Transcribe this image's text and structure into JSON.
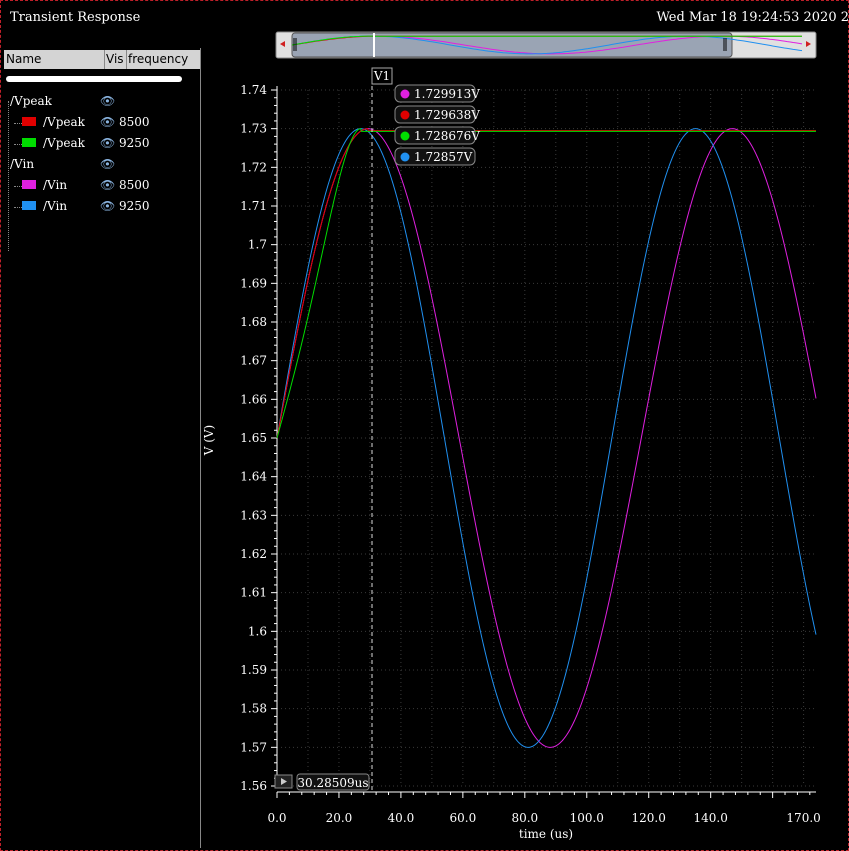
{
  "window": {
    "title": "Transient Response",
    "datetime": "Wed Mar 18 19:24:53 2020  2"
  },
  "legend": {
    "columns": [
      "Name",
      "Vis",
      "frequency"
    ],
    "groups": [
      {
        "name": "/Vpeak",
        "traces": [
          {
            "name": "/Vpeak",
            "freq": "8500",
            "color": "#e00000"
          },
          {
            "name": "/Vpeak",
            "freq": "9250",
            "color": "#00dd00"
          }
        ]
      },
      {
        "name": "/Vin",
        "traces": [
          {
            "name": "/Vin",
            "freq": "8500",
            "color": "#e020e0"
          },
          {
            "name": "/Vin",
            "freq": "9250",
            "color": "#2090f0"
          }
        ]
      }
    ]
  },
  "cursor": {
    "label": "V1",
    "x_value": "30.28509us",
    "readouts": [
      {
        "value": "1.729913V",
        "color": "#e020e0"
      },
      {
        "value": "1.729638V",
        "color": "#e00000"
      },
      {
        "value": "1.728676V",
        "color": "#00dd00"
      },
      {
        "value": "1.72857V",
        "color": "#2090f0"
      }
    ]
  },
  "chart_data": {
    "type": "line",
    "xlabel": "time (us)",
    "ylabel": "V (V)",
    "xlim": [
      0,
      174
    ],
    "ylim": [
      1.56,
      1.74
    ],
    "x_tick_labels": [
      "0.0",
      "20.0",
      "40.0",
      "60.0",
      "80.0",
      "100.0",
      "120.0",
      "140.0",
      "170.0"
    ],
    "x_tick_values": [
      0,
      20,
      40,
      60,
      80,
      100,
      120,
      140,
      170
    ],
    "y_tick_labels": [
      "1.74",
      "1.73",
      "1.72",
      "1.71",
      "1.7",
      "1.69",
      "1.68",
      "1.67",
      "1.66",
      "1.65",
      "1.64",
      "1.63",
      "1.62",
      "1.61",
      "1.6",
      "1.59",
      "1.58",
      "1.57",
      "1.56"
    ],
    "y_tick_values": [
      1.74,
      1.73,
      1.72,
      1.71,
      1.7,
      1.69,
      1.68,
      1.67,
      1.66,
      1.65,
      1.64,
      1.63,
      1.62,
      1.61,
      1.6,
      1.59,
      1.58,
      1.57,
      1.56
    ],
    "grid": true,
    "series": [
      {
        "color": "#e020e0",
        "kind": "sine",
        "offset": 1.65,
        "amplitude": 0.08,
        "period_us": 117.6,
        "x_end": 174
      },
      {
        "color": "#2090f0",
        "kind": "sine",
        "offset": 1.65,
        "amplitude": 0.08,
        "period_us": 108.1,
        "x_end": 174
      },
      {
        "color": "#e00000",
        "kind": "peak",
        "offset": 1.65,
        "amplitude": 0.08,
        "period_us": 117.6,
        "hold": 1.7295,
        "x_end": 174
      },
      {
        "color": "#00dd00",
        "kind": "peak",
        "offset": 1.65,
        "amplitude": 0.08,
        "period_us": 108.1,
        "hold": 1.7293,
        "x_end": 174,
        "curve": "slow"
      }
    ]
  }
}
